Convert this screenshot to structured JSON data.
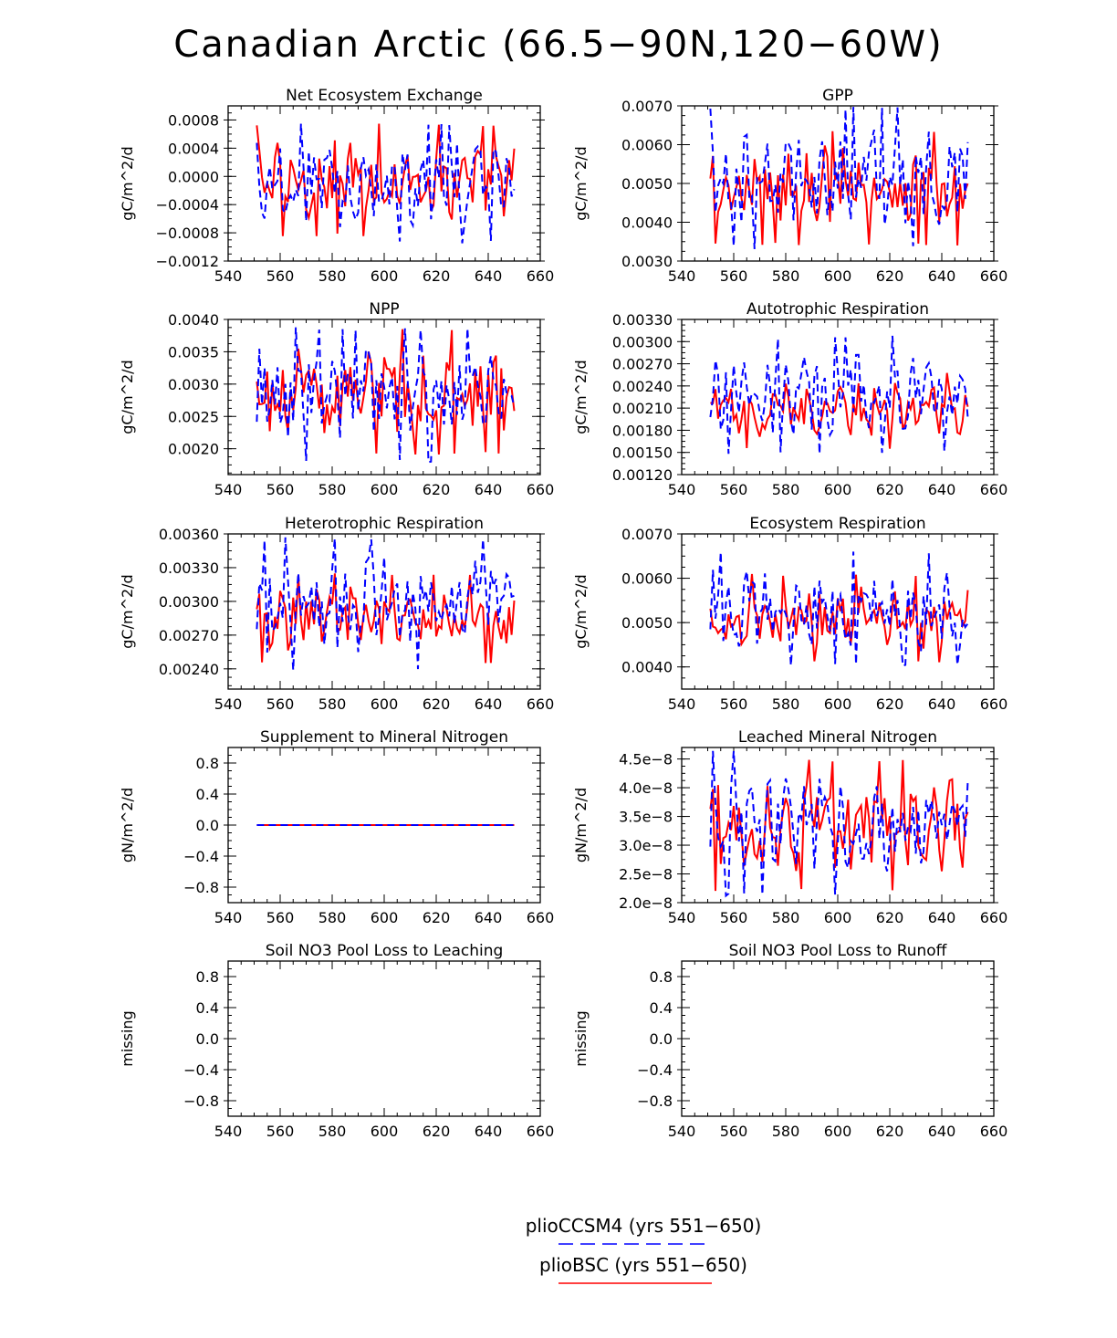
{
  "title": "Canadian Arctic (66.5−90N,120−60W)",
  "colors": {
    "pliocesm": "#0000ff",
    "pliobsc": "#ff0000",
    "axis": "#000000"
  },
  "legend": {
    "items": [
      {
        "label": "plioCCSM4 (yrs 551−650)",
        "color": "#0000ff",
        "dash": "dashed"
      },
      {
        "label": "plioBSC (yrs 551−650)",
        "color": "#ff0000",
        "dash": "solid"
      }
    ]
  },
  "chart_data": [
    {
      "type": "line",
      "title": "Net Ecosystem Exchange",
      "ylabel": "gC/m^2/d",
      "xlim": [
        540,
        660
      ],
      "xticks": [
        "540",
        "560",
        "580",
        "600",
        "620",
        "640",
        "660"
      ],
      "ylim": [
        -0.0012,
        0.001
      ],
      "yticks": [
        -0.0012,
        -0.0008,
        -0.0004,
        0,
        0.0004,
        0.0008
      ],
      "yticklabels": [
        "−0.0012",
        "−0.0008",
        "−0.0004",
        "0.0000",
        "0.0004",
        "0.0008"
      ],
      "series": [
        {
          "name": "plioBSC",
          "style": "solid",
          "x_start": 551,
          "x_end": 650,
          "range": [
            -0.00085,
            0.00075
          ],
          "peaks": [
            0.00075,
            0.00072,
            0.00071
          ],
          "troughs": [
            -0.00084,
            -0.00055,
            -0.0006
          ]
        },
        {
          "name": "plioCCSM4",
          "style": "dashed",
          "x_start": 551,
          "x_end": 650,
          "range": [
            -0.00095,
            0.00075
          ],
          "peaks": [
            0.00075,
            0.00068
          ],
          "troughs": [
            -0.00097,
            -0.0006
          ]
        }
      ]
    },
    {
      "type": "line",
      "title": "GPP",
      "ylabel": "gC/m^2/d",
      "xlim": [
        540,
        660
      ],
      "xticks": [
        "540",
        "560",
        "580",
        "600",
        "620",
        "640",
        "660"
      ],
      "ylim": [
        0.003,
        0.007
      ],
      "yticks": [
        0.003,
        0.004,
        0.005,
        0.006,
        0.007
      ],
      "yticklabels": [
        "0.0030",
        "0.0040",
        "0.0050",
        "0.0060",
        "0.0070"
      ],
      "series": [
        {
          "name": "plioBSC",
          "style": "solid",
          "x_start": 551,
          "x_end": 650,
          "range": [
            0.0034,
            0.0064
          ]
        },
        {
          "name": "plioCCSM4",
          "style": "dashed",
          "x_start": 551,
          "x_end": 650,
          "range": [
            0.0033,
            0.007
          ]
        }
      ]
    },
    {
      "type": "line",
      "title": "NPP",
      "ylabel": "gC/m^2/d",
      "xlim": [
        540,
        660
      ],
      "xticks": [
        "540",
        "560",
        "580",
        "600",
        "620",
        "640",
        "660"
      ],
      "ylim": [
        0.0016,
        0.004
      ],
      "yticks": [
        0.002,
        0.0025,
        0.003,
        0.0035,
        0.004
      ],
      "yticklabels": [
        "0.0020",
        "0.0025",
        "0.0030",
        "0.0035",
        "0.0040"
      ],
      "series": [
        {
          "name": "plioBSC",
          "style": "solid",
          "x_start": 551,
          "x_end": 650,
          "range": [
            0.0019,
            0.00385
          ]
        },
        {
          "name": "plioCCSM4",
          "style": "dashed",
          "x_start": 551,
          "x_end": 650,
          "range": [
            0.00178,
            0.00388
          ]
        }
      ]
    },
    {
      "type": "line",
      "title": "Autotrophic Respiration",
      "ylabel": "gC/m^2/d",
      "xlim": [
        540,
        660
      ],
      "xticks": [
        "540",
        "560",
        "580",
        "600",
        "620",
        "640",
        "660"
      ],
      "ylim": [
        0.0012,
        0.0033
      ],
      "yticks": [
        0.0012,
        0.0015,
        0.0018,
        0.0021,
        0.0024,
        0.0027,
        0.003,
        0.0033
      ],
      "yticklabels": [
        "0.00120",
        "0.00150",
        "0.00180",
        "0.00210",
        "0.00240",
        "0.00270",
        "0.00300",
        "0.00330"
      ],
      "series": [
        {
          "name": "plioBSC",
          "style": "solid",
          "x_start": 551,
          "x_end": 650,
          "range": [
            0.00155,
            0.0026
          ]
        },
        {
          "name": "plioCCSM4",
          "style": "dashed",
          "x_start": 551,
          "x_end": 650,
          "range": [
            0.00148,
            0.00308
          ]
        }
      ]
    },
    {
      "type": "line",
      "title": "Heterotrophic Respiration",
      "ylabel": "gC/m^2/d",
      "xlim": [
        540,
        660
      ],
      "xticks": [
        "540",
        "560",
        "580",
        "600",
        "620",
        "640",
        "660"
      ],
      "ylim": [
        0.00222,
        0.0036
      ],
      "yticks": [
        0.0024,
        0.0027,
        0.003,
        0.0033,
        0.0036
      ],
      "yticklabels": [
        "0.00240",
        "0.00270",
        "0.00300",
        "0.00330",
        "0.00360"
      ],
      "series": [
        {
          "name": "plioBSC",
          "style": "solid",
          "x_start": 551,
          "x_end": 650,
          "range": [
            0.00245,
            0.00325
          ]
        },
        {
          "name": "plioCCSM4",
          "style": "dashed",
          "x_start": 551,
          "x_end": 650,
          "range": [
            0.00237,
            0.00357
          ]
        }
      ]
    },
    {
      "type": "line",
      "title": "Ecosystem Respiration",
      "ylabel": "gC/m^2/d",
      "xlim": [
        540,
        660
      ],
      "xticks": [
        "540",
        "560",
        "580",
        "600",
        "620",
        "640",
        "660"
      ],
      "ylim": [
        0.0035,
        0.007
      ],
      "yticks": [
        0.004,
        0.005,
        0.006,
        0.007
      ],
      "yticklabels": [
        "0.0040",
        "0.0050",
        "0.0060",
        "0.0070"
      ],
      "series": [
        {
          "name": "plioBSC",
          "style": "solid",
          "x_start": 551,
          "x_end": 650,
          "range": [
            0.0041,
            0.0061
          ]
        },
        {
          "name": "plioCCSM4",
          "style": "dashed",
          "x_start": 551,
          "x_end": 650,
          "range": [
            0.004,
            0.0066
          ]
        }
      ]
    },
    {
      "type": "line",
      "title": "Supplement to Mineral Nitrogen",
      "ylabel": "gN/m^2/d",
      "xlim": [
        540,
        660
      ],
      "xticks": [
        "540",
        "560",
        "580",
        "600",
        "620",
        "640",
        "660"
      ],
      "ylim": [
        -1.0,
        1.0
      ],
      "yticks": [
        -0.8,
        -0.4,
        0,
        0.4,
        0.8
      ],
      "yticklabels": [
        "−0.8",
        "−0.4",
        "0.0",
        "0.4",
        "0.8"
      ],
      "series": [
        {
          "name": "plioBSC",
          "style": "solid",
          "x_start": 551,
          "x_end": 650,
          "constant": 0.0
        },
        {
          "name": "plioCCSM4",
          "style": "dashed",
          "x_start": 551,
          "x_end": 650,
          "constant": 0.0
        }
      ]
    },
    {
      "type": "line",
      "title": "Leached Mineral Nitrogen",
      "ylabel": "gN/m^2/d",
      "xlim": [
        540,
        660
      ],
      "xticks": [
        "540",
        "560",
        "580",
        "600",
        "620",
        "640",
        "660"
      ],
      "ylim": [
        2e-08,
        4.7e-08
      ],
      "yticks": [
        2e-08,
        2.5e-08,
        3e-08,
        3.5e-08,
        4e-08,
        4.5e-08
      ],
      "yticklabels": [
        "2.0e−8",
        "2.5e−8",
        "3.0e−8",
        "3.5e−8",
        "4.0e−8",
        "4.5e−8"
      ],
      "series": [
        {
          "name": "plioBSC",
          "style": "solid",
          "x_start": 551,
          "x_end": 650,
          "range": [
            2.2e-08,
            4.5e-08
          ]
        },
        {
          "name": "plioCCSM4",
          "style": "dashed",
          "x_start": 551,
          "x_end": 650,
          "range": [
            2.1e-08,
            4.65e-08
          ]
        }
      ]
    },
    {
      "type": "line",
      "title": "Soil NO3 Pool Loss to Leaching",
      "ylabel": "missing",
      "xlim": [
        540,
        660
      ],
      "xticks": [
        "540",
        "560",
        "580",
        "600",
        "620",
        "640",
        "660"
      ],
      "ylim": [
        -1.0,
        1.0
      ],
      "yticks": [
        -0.8,
        -0.4,
        0,
        0.4,
        0.8
      ],
      "yticklabels": [
        "−0.8",
        "−0.4",
        "0.0",
        "0.4",
        "0.8"
      ],
      "series": []
    },
    {
      "type": "line",
      "title": "Soil NO3 Pool Loss to Runoff",
      "ylabel": "missing",
      "xlim": [
        540,
        660
      ],
      "xticks": [
        "540",
        "560",
        "580",
        "600",
        "620",
        "640",
        "660"
      ],
      "ylim": [
        -1.0,
        1.0
      ],
      "yticks": [
        -0.8,
        -0.4,
        0,
        0.4,
        0.8
      ],
      "yticklabels": [
        "−0.8",
        "−0.4",
        "0.0",
        "0.4",
        "0.8"
      ],
      "series": []
    }
  ]
}
